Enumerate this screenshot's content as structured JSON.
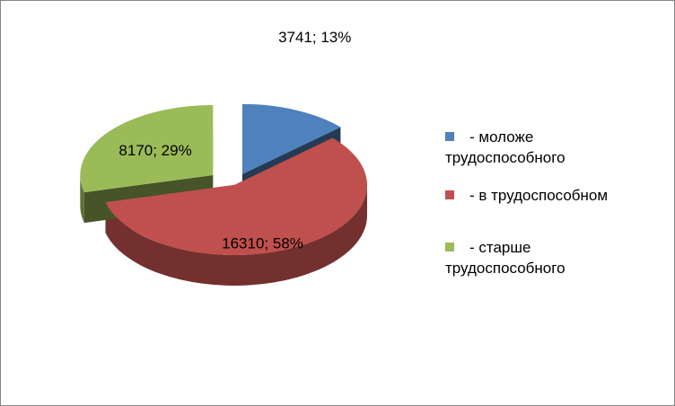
{
  "chart_data": {
    "type": "pie",
    "categories": [
      "- моложе трудоспособного",
      "- в трудоспособном",
      "- старше трудоспособного"
    ],
    "values": [
      3741,
      16310,
      8170
    ],
    "value_labels": [
      "3741; 13%",
      "16310; 58%",
      "8170; 29%"
    ],
    "colors": [
      "#4f81bd",
      "#c0504d",
      "#9bbb59"
    ],
    "legend": "right"
  }
}
